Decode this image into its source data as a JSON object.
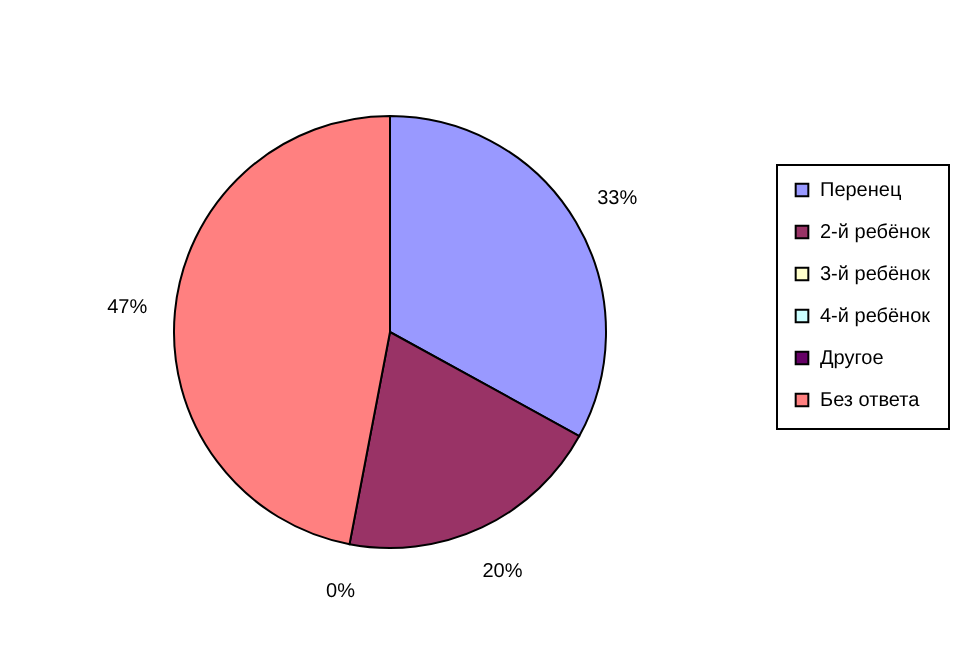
{
  "chart_data": {
    "type": "pie",
    "categories": [
      "Перенец",
      "2-й ребёнок",
      "3-й ребёнок",
      "4-й ребёнок",
      "Другое",
      "Без ответа"
    ],
    "values": [
      33,
      20,
      0,
      0,
      0,
      47
    ],
    "colors": [
      "#9999ff",
      "#993366",
      "#ffffcc",
      "#ccffff",
      "#660066",
      "#ff8080"
    ],
    "value_labels": [
      "33%",
      "20%",
      null,
      null,
      "0%",
      "47%"
    ],
    "legend": "right"
  }
}
